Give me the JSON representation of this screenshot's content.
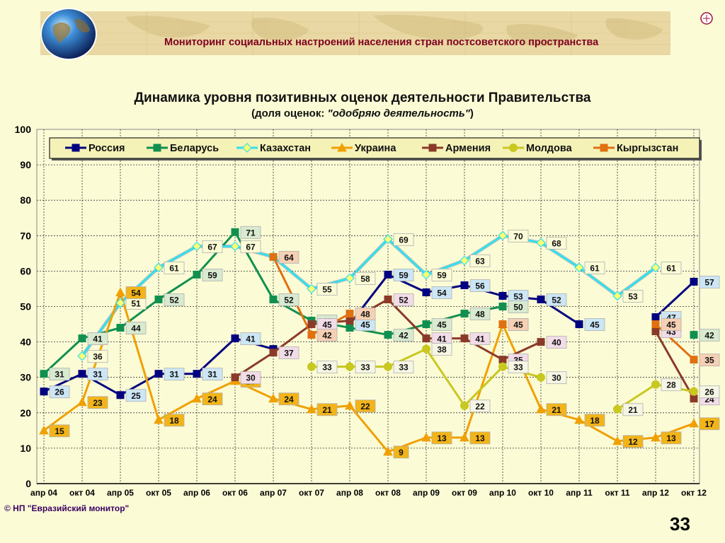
{
  "header": {
    "title": "Мониторинг социальных настроений населения стран постсоветского пространства"
  },
  "chart_title": "Динамика уровня позитивных оценок деятельности Правительства",
  "chart_subtitle_prefix": "(доля оценок: ",
  "chart_subtitle_italic": "\"одобряю деятельность\"",
  "chart_subtitle_suffix": ")",
  "footer": {
    "copyright": "© НП \"Евразийский монитор\"",
    "page_number": "33"
  },
  "chart_data": {
    "type": "line",
    "categories": [
      "апр 04",
      "окт 04",
      "апр 05",
      "окт 05",
      "апр 06",
      "окт 06",
      "апр 07",
      "окт 07",
      "апр 08",
      "окт 08",
      "апр 09",
      "окт 09",
      "апр 10",
      "окт 10",
      "апр 11",
      "окт 11",
      "апр 12",
      "окт 12"
    ],
    "ylim": [
      0,
      100
    ],
    "yticks": [
      0,
      10,
      20,
      30,
      40,
      50,
      60,
      70,
      80,
      90,
      100
    ],
    "grid": true,
    "legend_position": "top",
    "series": [
      {
        "name": "Россия",
        "color": "#000080",
        "marker": "square",
        "label_bg": "#cce6f5",
        "values": [
          26,
          31,
          25,
          31,
          31,
          41,
          38,
          null,
          45,
          59,
          54,
          56,
          53,
          52,
          45,
          null,
          47,
          57
        ],
        "labels": [
          "26",
          "31",
          "25",
          "31",
          "31",
          "41",
          null,
          null,
          "45",
          "59",
          "54",
          "56",
          "53",
          "52",
          "45",
          null,
          "47",
          "57"
        ]
      },
      {
        "name": "Беларусь",
        "color": "#109050",
        "marker": "square",
        "label_bg": "#d8ead0",
        "values": [
          31,
          41,
          44,
          52,
          59,
          71,
          52,
          46,
          44,
          42,
          45,
          48,
          50,
          null,
          null,
          null,
          null,
          42
        ],
        "labels": [
          "31",
          "41",
          "44",
          "52",
          "59",
          "71",
          "52",
          "46",
          null,
          "42",
          "45",
          "48",
          "50",
          null,
          null,
          null,
          null,
          "42"
        ]
      },
      {
        "name": "Казахстан",
        "color": "#30e0f0",
        "marker": "diamond",
        "label_bg": "#fbfbd6",
        "values": [
          null,
          36,
          51,
          61,
          67,
          67,
          64,
          55,
          58,
          69,
          59,
          63,
          70,
          68,
          61,
          53,
          61,
          null
        ],
        "labels": [
          null,
          "36",
          "51",
          "61",
          "67",
          "67",
          null,
          "55",
          "58",
          "69",
          "59",
          "63",
          "70",
          "68",
          "61",
          "53",
          "61",
          null
        ]
      },
      {
        "name": "Украина",
        "color": "#f0a000",
        "marker": "triangle",
        "label_bg": "#f2b418",
        "values": [
          15,
          23,
          54,
          18,
          24,
          29,
          24,
          21,
          22,
          9,
          13,
          13,
          45,
          21,
          18,
          12,
          13,
          17
        ],
        "labels": [
          "15",
          "23",
          "54",
          "18",
          "24",
          "29",
          "24",
          "21",
          "22",
          "9",
          "13",
          "13",
          "45",
          "21",
          "18",
          "12",
          "13",
          "17"
        ]
      },
      {
        "name": "Армения",
        "color": "#8b3a2a",
        "marker": "square",
        "label_bg": "#f2dce8",
        "values": [
          null,
          null,
          null,
          null,
          null,
          30,
          37,
          45,
          46,
          52,
          41,
          41,
          35,
          40,
          null,
          null,
          43,
          24
        ],
        "labels": [
          null,
          null,
          null,
          null,
          null,
          "30",
          "37",
          "45",
          null,
          "52",
          "41",
          "41",
          "35",
          "40",
          null,
          null,
          "43",
          "24"
        ]
      },
      {
        "name": "Молдова",
        "color": "#c8c820",
        "marker": "circle",
        "label_bg": "#f6f6e4",
        "values": [
          null,
          null,
          null,
          null,
          null,
          null,
          null,
          33,
          33,
          33,
          38,
          22,
          33,
          30,
          null,
          21,
          28,
          26
        ],
        "labels": [
          null,
          null,
          null,
          null,
          null,
          null,
          null,
          "33",
          "33",
          "33",
          "38",
          "22",
          "33",
          "30",
          null,
          "21",
          "28",
          "26"
        ]
      },
      {
        "name": "Кыргызстан",
        "color": "#e07010",
        "marker": "square",
        "label_bg": "#f6d0b4",
        "values": [
          null,
          null,
          null,
          null,
          null,
          null,
          64,
          42,
          48,
          null,
          null,
          null,
          45,
          null,
          null,
          null,
          45,
          35
        ],
        "labels": [
          null,
          null,
          null,
          null,
          null,
          null,
          "64",
          "42",
          "48",
          null,
          null,
          null,
          "45",
          null,
          null,
          null,
          "45",
          "35"
        ]
      }
    ]
  }
}
